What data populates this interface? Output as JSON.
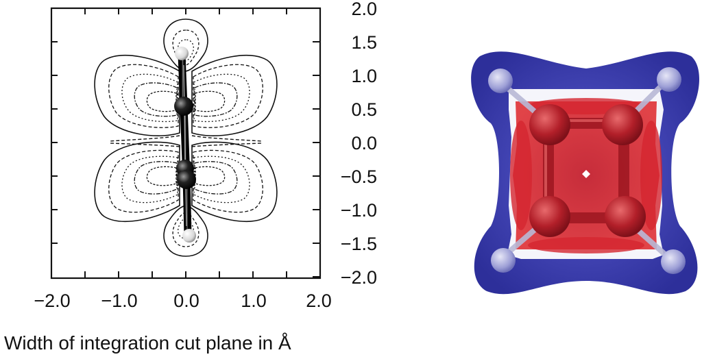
{
  "left_panel": {
    "y_tick_labels": [
      "2.0",
      "1.5",
      "1.0",
      "0.5",
      "0.0",
      "−0.5",
      "−1.0",
      "−1.5",
      "−2.0"
    ],
    "x_tick_labels": [
      "−2.0",
      "−1.0",
      "0.0",
      "1.0",
      "2.0"
    ],
    "x_axis_title": "Width of integration cut plane in Å",
    "axis_ranges": {
      "x": [
        -2.0,
        2.0
      ],
      "y": [
        -2.0,
        2.0
      ]
    },
    "contour_style": "solid outer contour with dashed and dotted inner contours",
    "molecule_atoms": [
      "hydrogen-top",
      "carbon-upper",
      "carbon-lower",
      "hydrogen-bottom"
    ]
  },
  "right_panel": {
    "description_colors": {
      "outer_isosurface": "#3a3dae",
      "inner_isosurface": "#d8232f",
      "gap": "#ffffff"
    },
    "molecule_atoms": [
      "carbon",
      "carbon",
      "carbon",
      "carbon",
      "hydrogen",
      "hydrogen",
      "hydrogen",
      "hydrogen"
    ]
  }
}
